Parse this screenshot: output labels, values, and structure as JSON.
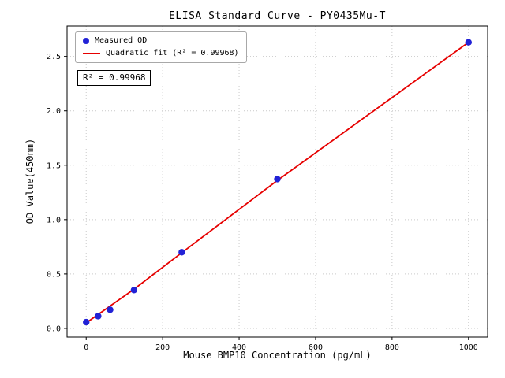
{
  "chart_data": {
    "type": "scatter",
    "title": "ELISA Standard Curve - PY0435Mu-T",
    "xlabel": "Mouse BMP10 Concentration (pg/mL)",
    "ylabel": "OD Value(450nm)",
    "xlim": [
      -50,
      1050
    ],
    "ylim": [
      -0.08,
      2.78
    ],
    "xticks": [
      0,
      200,
      400,
      600,
      800,
      1000
    ],
    "xtick_labels": [
      "0",
      "200",
      "400",
      "600",
      "800",
      "1000"
    ],
    "yticks": [
      0,
      0.5,
      1.0,
      1.5,
      2.0,
      2.5
    ],
    "ytick_labels": [
      "0.0",
      "0.5",
      "1.0",
      "1.5",
      "2.0",
      "2.5"
    ],
    "grid": true,
    "grid_color": "#c9c9c9",
    "series": [
      {
        "name": "Measured OD",
        "type": "scatter",
        "color": "#2222d6",
        "x": [
          0,
          31.25,
          62.5,
          125,
          250,
          500,
          1000
        ],
        "y": [
          0.057,
          0.112,
          0.171,
          0.352,
          0.7,
          1.372,
          2.63
        ]
      },
      {
        "name": "Quadratic fit (R² = 0.99968)",
        "type": "line",
        "color": "#e60000",
        "x": [
          0,
          125,
          250,
          500,
          1000
        ],
        "y": [
          0.05,
          0.36,
          0.695,
          1.36,
          2.63
        ]
      }
    ],
    "legend": {
      "position": "upper-left",
      "entries": [
        "Measured OD",
        "Quadratic fit (R² = 0.99968)"
      ]
    },
    "annotation": "R² = 0.99968"
  }
}
